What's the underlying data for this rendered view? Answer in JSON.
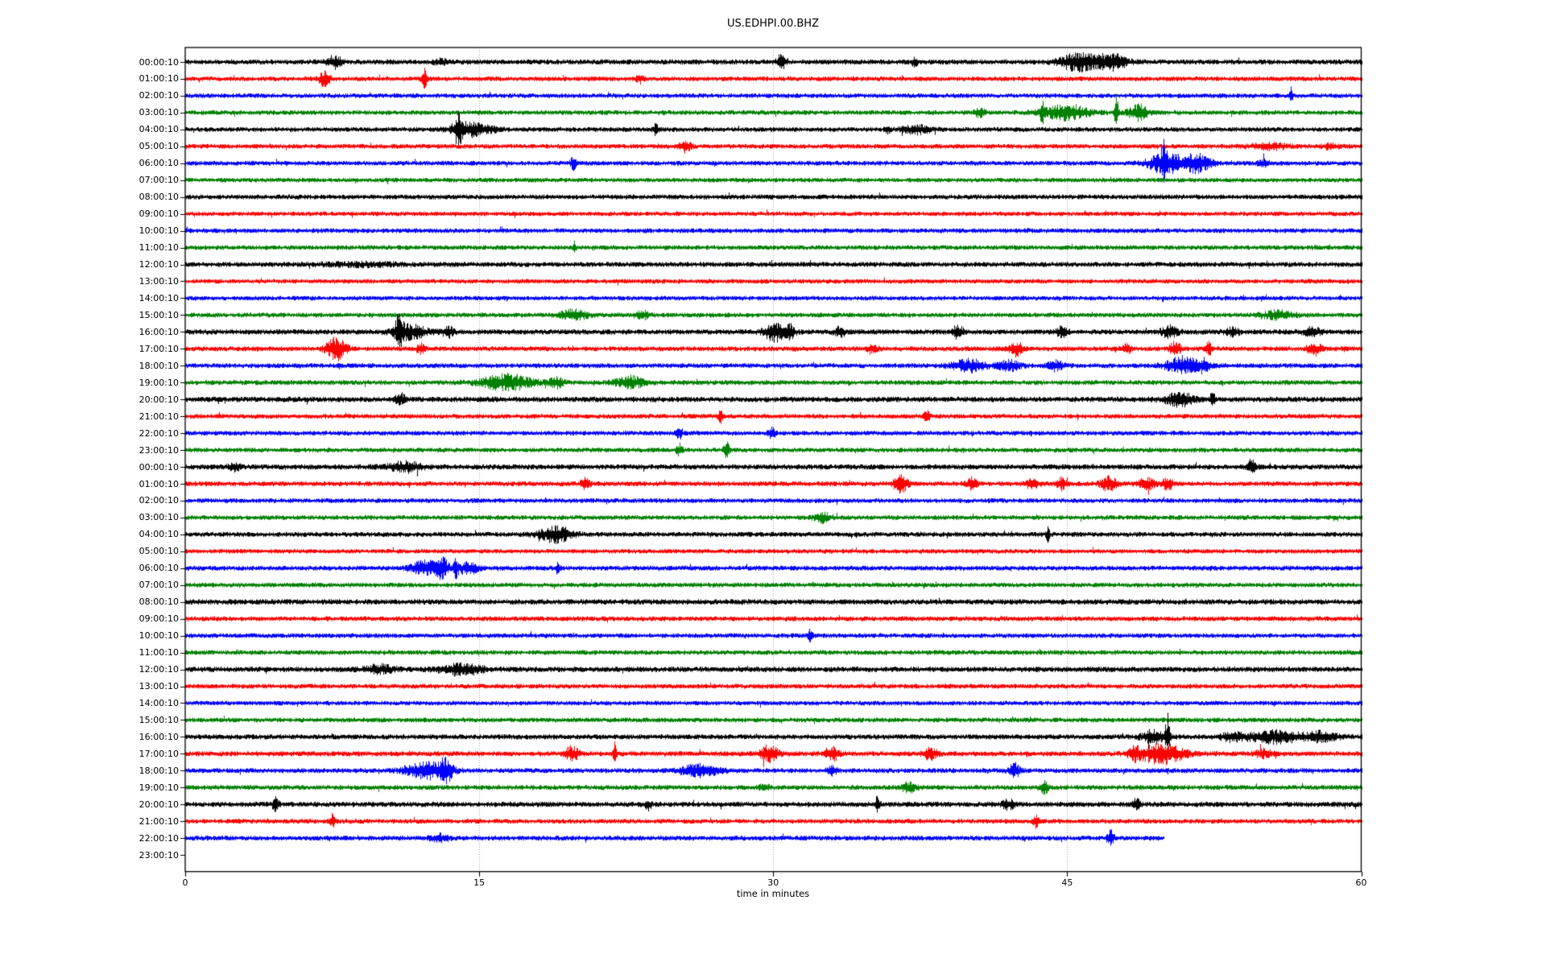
{
  "title": "US.EDHPI.00.BHZ",
  "xlabel": "time in minutes",
  "chart_data": {
    "type": "line",
    "subtype": "helicorder-dayplot",
    "title": "US.EDHPI.00.BHZ",
    "xlabel": "time in minutes",
    "xlim": [
      0,
      60
    ],
    "x_ticks": [
      0,
      15,
      30,
      45,
      60
    ],
    "grid_minutes": [
      15,
      30,
      45
    ],
    "grid_style": "dotted",
    "grid_color": "#a0a0a0",
    "background_color": "#ffffff",
    "spine_color": "#000000",
    "color_cycle": [
      "#000000",
      "#ff0000",
      "#0000ff",
      "#008000"
    ],
    "interval_minutes": 60,
    "rows": [
      {
        "label": "00:00:10",
        "color": "#000000",
        "base_amp": 2.8,
        "start": 0,
        "end": 60,
        "events": [
          [
            7.6,
            0.25,
            6
          ],
          [
            13.0,
            0.2,
            3
          ],
          [
            30.4,
            0.15,
            8
          ],
          [
            37.2,
            0.1,
            5
          ],
          [
            45.6,
            0.7,
            9
          ],
          [
            47.3,
            0.5,
            8
          ]
        ]
      },
      {
        "label": "01:00:10",
        "color": "#ff0000",
        "base_amp": 2.6,
        "start": 0,
        "end": 60,
        "events": [
          [
            7.1,
            0.2,
            8
          ],
          [
            12.2,
            0.1,
            10
          ],
          [
            23.2,
            0.15,
            4
          ]
        ]
      },
      {
        "label": "02:00:10",
        "color": "#0000ff",
        "base_amp": 2.6,
        "start": 0,
        "end": 60,
        "events": [
          [
            56.4,
            0.06,
            8
          ]
        ]
      },
      {
        "label": "03:00:10",
        "color": "#008000",
        "base_amp": 2.6,
        "start": 0,
        "end": 60,
        "events": [
          [
            40.5,
            0.2,
            4
          ],
          [
            43.7,
            0.07,
            11
          ],
          [
            44.9,
            0.8,
            8
          ],
          [
            47.5,
            0.07,
            18
          ],
          [
            48.6,
            0.35,
            8
          ]
        ]
      },
      {
        "label": "04:00:10",
        "color": "#000000",
        "base_amp": 2.6,
        "start": 0,
        "end": 60,
        "events": [
          [
            13.9,
            0.15,
            14
          ],
          [
            14.6,
            0.7,
            7
          ],
          [
            24.0,
            0.12,
            5
          ],
          [
            35.8,
            0.1,
            4
          ],
          [
            37.3,
            0.5,
            4
          ]
        ]
      },
      {
        "label": "05:00:10",
        "color": "#ff0000",
        "base_amp": 2.6,
        "start": 0,
        "end": 60,
        "events": [
          [
            25.5,
            0.2,
            6
          ],
          [
            55.3,
            0.7,
            3
          ],
          [
            58.5,
            0.3,
            3
          ]
        ]
      },
      {
        "label": "06:00:10",
        "color": "#0000ff",
        "base_amp": 2.6,
        "start": 0,
        "end": 60,
        "events": [
          [
            19.8,
            0.1,
            8
          ],
          [
            49.9,
            0.07,
            17
          ],
          [
            50.0,
            0.6,
            11
          ],
          [
            51.6,
            0.5,
            9
          ],
          [
            55.0,
            0.2,
            3
          ]
        ]
      },
      {
        "label": "07:00:10",
        "color": "#008000",
        "base_amp": 2.5,
        "start": 0,
        "end": 60,
        "events": []
      },
      {
        "label": "08:00:10",
        "color": "#000000",
        "base_amp": 2.7,
        "start": 0,
        "end": 60,
        "events": []
      },
      {
        "label": "09:00:10",
        "color": "#ff0000",
        "base_amp": 2.5,
        "start": 0,
        "end": 60,
        "events": []
      },
      {
        "label": "10:00:10",
        "color": "#0000ff",
        "base_amp": 2.6,
        "start": 0,
        "end": 60,
        "events": []
      },
      {
        "label": "11:00:10",
        "color": "#008000",
        "base_amp": 2.6,
        "start": 0,
        "end": 60,
        "events": [
          [
            19.85,
            0.05,
            7
          ]
        ]
      },
      {
        "label": "12:00:10",
        "color": "#000000",
        "base_amp": 2.8,
        "start": 0,
        "end": 60,
        "events": [
          [
            9.0,
            1.5,
            1.5
          ]
        ]
      },
      {
        "label": "13:00:10",
        "color": "#ff0000",
        "base_amp": 2.5,
        "start": 0,
        "end": 60,
        "events": []
      },
      {
        "label": "14:00:10",
        "color": "#0000ff",
        "base_amp": 2.5,
        "start": 0,
        "end": 60,
        "events": []
      },
      {
        "label": "15:00:10",
        "color": "#008000",
        "base_amp": 2.6,
        "start": 0,
        "end": 60,
        "events": [
          [
            19.8,
            0.5,
            5
          ],
          [
            23.3,
            0.25,
            4
          ],
          [
            55.7,
            0.6,
            4
          ]
        ]
      },
      {
        "label": "16:00:10",
        "color": "#000000",
        "base_amp": 2.9,
        "start": 0,
        "end": 60,
        "events": [
          [
            10.9,
            0.12,
            18
          ],
          [
            11.4,
            0.6,
            8
          ],
          [
            13.4,
            0.2,
            5
          ],
          [
            30.1,
            0.4,
            9
          ],
          [
            30.9,
            0.15,
            6
          ],
          [
            33.4,
            0.2,
            5
          ],
          [
            39.4,
            0.2,
            6
          ],
          [
            44.7,
            0.2,
            5
          ],
          [
            50.2,
            0.3,
            6
          ],
          [
            53.4,
            0.25,
            4
          ],
          [
            57.5,
            0.3,
            4
          ]
        ]
      },
      {
        "label": "17:00:10",
        "color": "#ff0000",
        "base_amp": 2.7,
        "start": 0,
        "end": 60,
        "events": [
          [
            7.7,
            0.35,
            12
          ],
          [
            12.0,
            0.15,
            5
          ],
          [
            35.0,
            0.2,
            4
          ],
          [
            42.4,
            0.25,
            7
          ],
          [
            48.0,
            0.15,
            5
          ],
          [
            50.5,
            0.2,
            7
          ],
          [
            52.2,
            0.15,
            6
          ],
          [
            57.6,
            0.25,
            6
          ]
        ]
      },
      {
        "label": "18:00:10",
        "color": "#0000ff",
        "base_amp": 2.7,
        "start": 0,
        "end": 60,
        "events": [
          [
            40.0,
            0.6,
            6
          ],
          [
            42.0,
            0.4,
            5
          ],
          [
            44.4,
            0.25,
            5
          ],
          [
            50.9,
            0.6,
            9
          ],
          [
            52.0,
            0.2,
            6
          ]
        ]
      },
      {
        "label": "19:00:10",
        "color": "#008000",
        "base_amp": 2.7,
        "start": 0,
        "end": 60,
        "events": [
          [
            16.4,
            0.9,
            8
          ],
          [
            18.9,
            0.25,
            5
          ],
          [
            22.7,
            0.5,
            6
          ]
        ]
      },
      {
        "label": "20:00:10",
        "color": "#000000",
        "base_amp": 3.0,
        "start": 0,
        "end": 60,
        "events": [
          [
            11.0,
            0.2,
            5
          ],
          [
            50.7,
            0.5,
            7
          ],
          [
            52.4,
            0.08,
            9
          ]
        ]
      },
      {
        "label": "21:00:10",
        "color": "#ff0000",
        "base_amp": 2.6,
        "start": 0,
        "end": 60,
        "events": [
          [
            27.3,
            0.08,
            9
          ],
          [
            37.8,
            0.1,
            7
          ]
        ]
      },
      {
        "label": "22:00:10",
        "color": "#0000ff",
        "base_amp": 2.6,
        "start": 0,
        "end": 60,
        "events": [
          [
            25.2,
            0.12,
            6
          ],
          [
            29.9,
            0.12,
            6
          ]
        ]
      },
      {
        "label": "23:00:10",
        "color": "#008000",
        "base_amp": 2.6,
        "start": 0,
        "end": 60,
        "events": [
          [
            25.2,
            0.1,
            6
          ],
          [
            27.6,
            0.1,
            8
          ]
        ]
      },
      {
        "label": "00:00:10",
        "color": "#000000",
        "base_amp": 2.9,
        "start": 0,
        "end": 60,
        "events": [
          [
            2.5,
            0.2,
            4
          ],
          [
            11.2,
            0.6,
            5
          ],
          [
            54.4,
            0.15,
            7
          ]
        ]
      },
      {
        "label": "01:00:10",
        "color": "#ff0000",
        "base_amp": 2.7,
        "start": 0,
        "end": 60,
        "events": [
          [
            20.4,
            0.15,
            6
          ],
          [
            36.5,
            0.25,
            9
          ],
          [
            40.1,
            0.2,
            6
          ],
          [
            43.2,
            0.2,
            6
          ],
          [
            44.7,
            0.15,
            7
          ],
          [
            47.1,
            0.3,
            7
          ],
          [
            49.0,
            0.3,
            6
          ],
          [
            50.1,
            0.2,
            6
          ]
        ]
      },
      {
        "label": "02:00:10",
        "color": "#0000ff",
        "base_amp": 2.6,
        "start": 0,
        "end": 60,
        "events": []
      },
      {
        "label": "03:00:10",
        "color": "#008000",
        "base_amp": 2.6,
        "start": 0,
        "end": 60,
        "events": [
          [
            32.5,
            0.3,
            5
          ]
        ]
      },
      {
        "label": "04:00:10",
        "color": "#000000",
        "base_amp": 2.7,
        "start": 0,
        "end": 60,
        "events": [
          [
            18.9,
            0.6,
            8
          ],
          [
            44.0,
            0.06,
            8
          ]
        ]
      },
      {
        "label": "05:00:10",
        "color": "#ff0000",
        "base_amp": 2.5,
        "start": 0,
        "end": 60,
        "events": []
      },
      {
        "label": "06:00:10",
        "color": "#0000ff",
        "base_amp": 2.7,
        "start": 0,
        "end": 60,
        "events": [
          [
            12.2,
            0.5,
            7
          ],
          [
            13.1,
            0.25,
            9
          ],
          [
            13.8,
            0.07,
            14
          ],
          [
            14.4,
            0.35,
            6
          ],
          [
            19.0,
            0.08,
            6
          ]
        ]
      },
      {
        "label": "07:00:10",
        "color": "#008000",
        "base_amp": 2.6,
        "start": 0,
        "end": 60,
        "events": []
      },
      {
        "label": "08:00:10",
        "color": "#000000",
        "base_amp": 3.0,
        "start": 0,
        "end": 60,
        "events": []
      },
      {
        "label": "09:00:10",
        "color": "#ff0000",
        "base_amp": 2.7,
        "start": 0,
        "end": 60,
        "events": []
      },
      {
        "label": "10:00:10",
        "color": "#0000ff",
        "base_amp": 2.6,
        "start": 0,
        "end": 60,
        "events": [
          [
            31.9,
            0.08,
            7
          ]
        ]
      },
      {
        "label": "11:00:10",
        "color": "#008000",
        "base_amp": 2.6,
        "start": 0,
        "end": 60,
        "events": []
      },
      {
        "label": "12:00:10",
        "color": "#000000",
        "base_amp": 3.0,
        "start": 0,
        "end": 60,
        "events": [
          [
            9.9,
            0.5,
            4
          ],
          [
            14.1,
            0.7,
            6
          ]
        ]
      },
      {
        "label": "13:00:10",
        "color": "#ff0000",
        "base_amp": 2.6,
        "start": 0,
        "end": 60,
        "events": []
      },
      {
        "label": "14:00:10",
        "color": "#0000ff",
        "base_amp": 2.5,
        "start": 0,
        "end": 60,
        "events": []
      },
      {
        "label": "15:00:10",
        "color": "#008000",
        "base_amp": 2.6,
        "start": 0,
        "end": 60,
        "events": []
      },
      {
        "label": "16:00:10",
        "color": "#000000",
        "base_amp": 2.8,
        "start": 0,
        "end": 60,
        "events": [
          [
            49.4,
            0.4,
            7
          ],
          [
            50.1,
            0.07,
            26
          ],
          [
            53.4,
            0.4,
            4
          ],
          [
            55.6,
            1.0,
            6
          ],
          [
            58.0,
            0.5,
            5
          ]
        ]
      },
      {
        "label": "17:00:10",
        "color": "#ff0000",
        "base_amp": 2.8,
        "start": 0,
        "end": 60,
        "events": [
          [
            19.7,
            0.25,
            7
          ],
          [
            21.9,
            0.06,
            16
          ],
          [
            29.8,
            0.3,
            9
          ],
          [
            33.0,
            0.25,
            7
          ],
          [
            38.0,
            0.25,
            6
          ],
          [
            48.4,
            0.2,
            6
          ],
          [
            49.8,
            0.8,
            10
          ],
          [
            55.0,
            0.3,
            4
          ]
        ]
      },
      {
        "label": "18:00:10",
        "color": "#0000ff",
        "base_amp": 2.7,
        "start": 0,
        "end": 60,
        "events": [
          [
            12.4,
            0.8,
            8
          ],
          [
            13.3,
            0.2,
            10
          ],
          [
            26.2,
            0.7,
            6
          ],
          [
            33.0,
            0.2,
            4
          ],
          [
            42.3,
            0.2,
            7
          ]
        ]
      },
      {
        "label": "19:00:10",
        "color": "#008000",
        "base_amp": 2.7,
        "start": 0,
        "end": 60,
        "events": [
          [
            29.5,
            0.2,
            3
          ],
          [
            36.9,
            0.25,
            5
          ],
          [
            43.8,
            0.15,
            6
          ]
        ]
      },
      {
        "label": "20:00:10",
        "color": "#000000",
        "base_amp": 2.9,
        "start": 0,
        "end": 60,
        "events": [
          [
            4.6,
            0.12,
            6
          ],
          [
            23.6,
            0.12,
            5
          ],
          [
            35.3,
            0.08,
            8
          ],
          [
            42.0,
            0.2,
            5
          ],
          [
            48.5,
            0.12,
            7
          ]
        ]
      },
      {
        "label": "21:00:10",
        "color": "#ff0000",
        "base_amp": 2.6,
        "start": 0,
        "end": 60,
        "events": [
          [
            7.5,
            0.1,
            7
          ],
          [
            43.4,
            0.1,
            6
          ]
        ]
      },
      {
        "label": "22:00:10",
        "color": "#0000ff",
        "base_amp": 2.7,
        "start": 0,
        "end": 49.9,
        "events": [
          [
            13.0,
            0.3,
            4
          ],
          [
            47.2,
            0.12,
            8
          ]
        ]
      },
      {
        "label": "23:00:10",
        "color": null,
        "base_amp": 0,
        "start": 0,
        "end": 0,
        "no_trace": true,
        "events": []
      }
    ]
  }
}
